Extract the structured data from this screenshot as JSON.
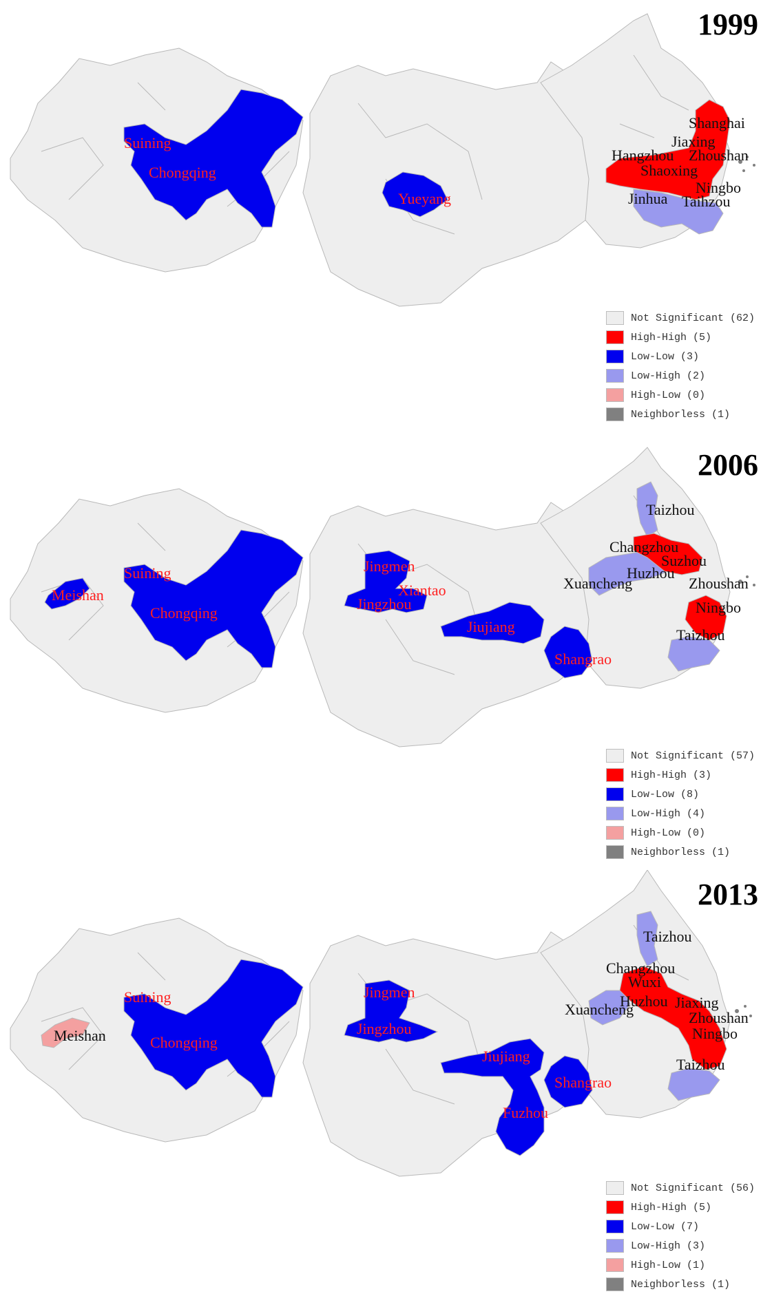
{
  "colors": {
    "not_significant": "#eeeeee",
    "high_high": "#ff0000",
    "low_low": "#0000ee",
    "low_high": "#9999ee",
    "high_low": "#f4a0a0",
    "neighborless": "#808080",
    "red_label": "#ff2020",
    "black_label": "#111111"
  },
  "panels": [
    {
      "year": "1999",
      "legend": [
        {
          "label": "Not Significant (62)",
          "color": "#eeeeee"
        },
        {
          "label": "High-High (5)",
          "color": "#ff0000"
        },
        {
          "label": "Low-Low (3)",
          "color": "#0000ee"
        },
        {
          "label": "Low-High (2)",
          "color": "#9999ee"
        },
        {
          "label": "High-Low (0)",
          "color": "#f4a0a0"
        },
        {
          "label": "Neighborless (1)",
          "color": "#808080"
        }
      ],
      "labels": [
        {
          "text": "Suining",
          "class": "red"
        },
        {
          "text": "Chongqing",
          "class": "red"
        },
        {
          "text": "Yueyang",
          "class": "red"
        },
        {
          "text": "Shanghai",
          "class": "black"
        },
        {
          "text": "Jiaxing",
          "class": "black"
        },
        {
          "text": "Hangzhou",
          "class": "black"
        },
        {
          "text": "Zhoushan",
          "class": "black"
        },
        {
          "text": "Shaoxing",
          "class": "black"
        },
        {
          "text": "Ningbo",
          "class": "black"
        },
        {
          "text": "Jinhua",
          "class": "black"
        },
        {
          "text": "Taihzou",
          "class": "black"
        }
      ]
    },
    {
      "year": "2006",
      "legend": [
        {
          "label": "Not Significant (57)",
          "color": "#eeeeee"
        },
        {
          "label": "High-High (3)",
          "color": "#ff0000"
        },
        {
          "label": "Low-Low (8)",
          "color": "#0000ee"
        },
        {
          "label": "Low-High (4)",
          "color": "#9999ee"
        },
        {
          "label": "High-Low (0)",
          "color": "#f4a0a0"
        },
        {
          "label": "Neighborless (1)",
          "color": "#808080"
        }
      ],
      "labels": [
        {
          "text": "Meishan",
          "class": "red"
        },
        {
          "text": "Suining",
          "class": "red"
        },
        {
          "text": "Chongqing",
          "class": "red"
        },
        {
          "text": "Jingmen",
          "class": "red"
        },
        {
          "text": "Xiantao",
          "class": "red"
        },
        {
          "text": "Jingzhou",
          "class": "red"
        },
        {
          "text": "Jiujiang",
          "class": "red"
        },
        {
          "text": "Shangrao",
          "class": "red"
        },
        {
          "text": "Taizhou",
          "class": "black"
        },
        {
          "text": "Changzhou",
          "class": "black"
        },
        {
          "text": "Suzhou",
          "class": "black"
        },
        {
          "text": "Huzhou",
          "class": "black"
        },
        {
          "text": "Xuancheng",
          "class": "black"
        },
        {
          "text": "Zhoushan",
          "class": "black"
        },
        {
          "text": "Ningbo",
          "class": "black"
        },
        {
          "text": "Taizhou",
          "class": "black"
        }
      ]
    },
    {
      "year": "2013",
      "legend": [
        {
          "label": "Not Significant (56)",
          "color": "#eeeeee"
        },
        {
          "label": "High-High (5)",
          "color": "#ff0000"
        },
        {
          "label": "Low-Low (7)",
          "color": "#0000ee"
        },
        {
          "label": "Low-High (3)",
          "color": "#9999ee"
        },
        {
          "label": "High-Low (1)",
          "color": "#f4a0a0"
        },
        {
          "label": "Neighborless (1)",
          "color": "#808080"
        }
      ],
      "labels": [
        {
          "text": "Meishan",
          "class": "black"
        },
        {
          "text": "Suining",
          "class": "red"
        },
        {
          "text": "Chongqing",
          "class": "red"
        },
        {
          "text": "Jingmen",
          "class": "red"
        },
        {
          "text": "Jingzhou",
          "class": "red"
        },
        {
          "text": "Jiujiang",
          "class": "red"
        },
        {
          "text": "Shangrao",
          "class": "red"
        },
        {
          "text": "Fuzhou",
          "class": "red"
        },
        {
          "text": "Taizhou",
          "class": "black"
        },
        {
          "text": "Changzhou",
          "class": "black"
        },
        {
          "text": "Wuxi",
          "class": "black"
        },
        {
          "text": "Huzhou",
          "class": "black"
        },
        {
          "text": "Jiaxing",
          "class": "black"
        },
        {
          "text": "Xuancheng",
          "class": "black"
        },
        {
          "text": "Zhoushan",
          "class": "black"
        },
        {
          "text": "Ningbo",
          "class": "black"
        },
        {
          "text": "Taizhou",
          "class": "black"
        }
      ]
    }
  ]
}
